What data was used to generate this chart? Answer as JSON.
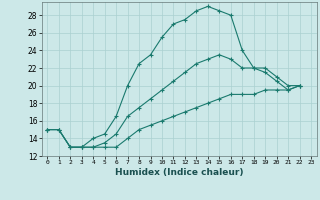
{
  "xlabel": "Humidex (Indice chaleur)",
  "background_color": "#cce8e8",
  "grid_color": "#aad0d0",
  "line_color": "#1a7a6e",
  "xlim": [
    -0.5,
    23.5
  ],
  "ylim": [
    12,
    29.5
  ],
  "yticks": [
    12,
    14,
    16,
    18,
    20,
    22,
    24,
    26,
    28
  ],
  "xticks": [
    0,
    1,
    2,
    3,
    4,
    5,
    6,
    7,
    8,
    9,
    10,
    11,
    12,
    13,
    14,
    15,
    16,
    17,
    18,
    19,
    20,
    21,
    22,
    23
  ],
  "line1_y": [
    15,
    15,
    13,
    13,
    14,
    14.5,
    16.5,
    20,
    22.5,
    23.5,
    25.5,
    27,
    27.5,
    28.5,
    29,
    28.5,
    28,
    24,
    22,
    21.5,
    20.5,
    19.5,
    20,
    null
  ],
  "line2_y": [
    15,
    15,
    13,
    13,
    13,
    13.5,
    14.5,
    16.5,
    17.5,
    18.5,
    19.5,
    20.5,
    21.5,
    22.5,
    23,
    23.5,
    23,
    22,
    22,
    22,
    21,
    20,
    20,
    null
  ],
  "line3_y": [
    15,
    15,
    13,
    13,
    13,
    13,
    13,
    14,
    15,
    15.5,
    16,
    16.5,
    17,
    17.5,
    18,
    18.5,
    19,
    19,
    19,
    19.5,
    19.5,
    19.5,
    20,
    null
  ]
}
